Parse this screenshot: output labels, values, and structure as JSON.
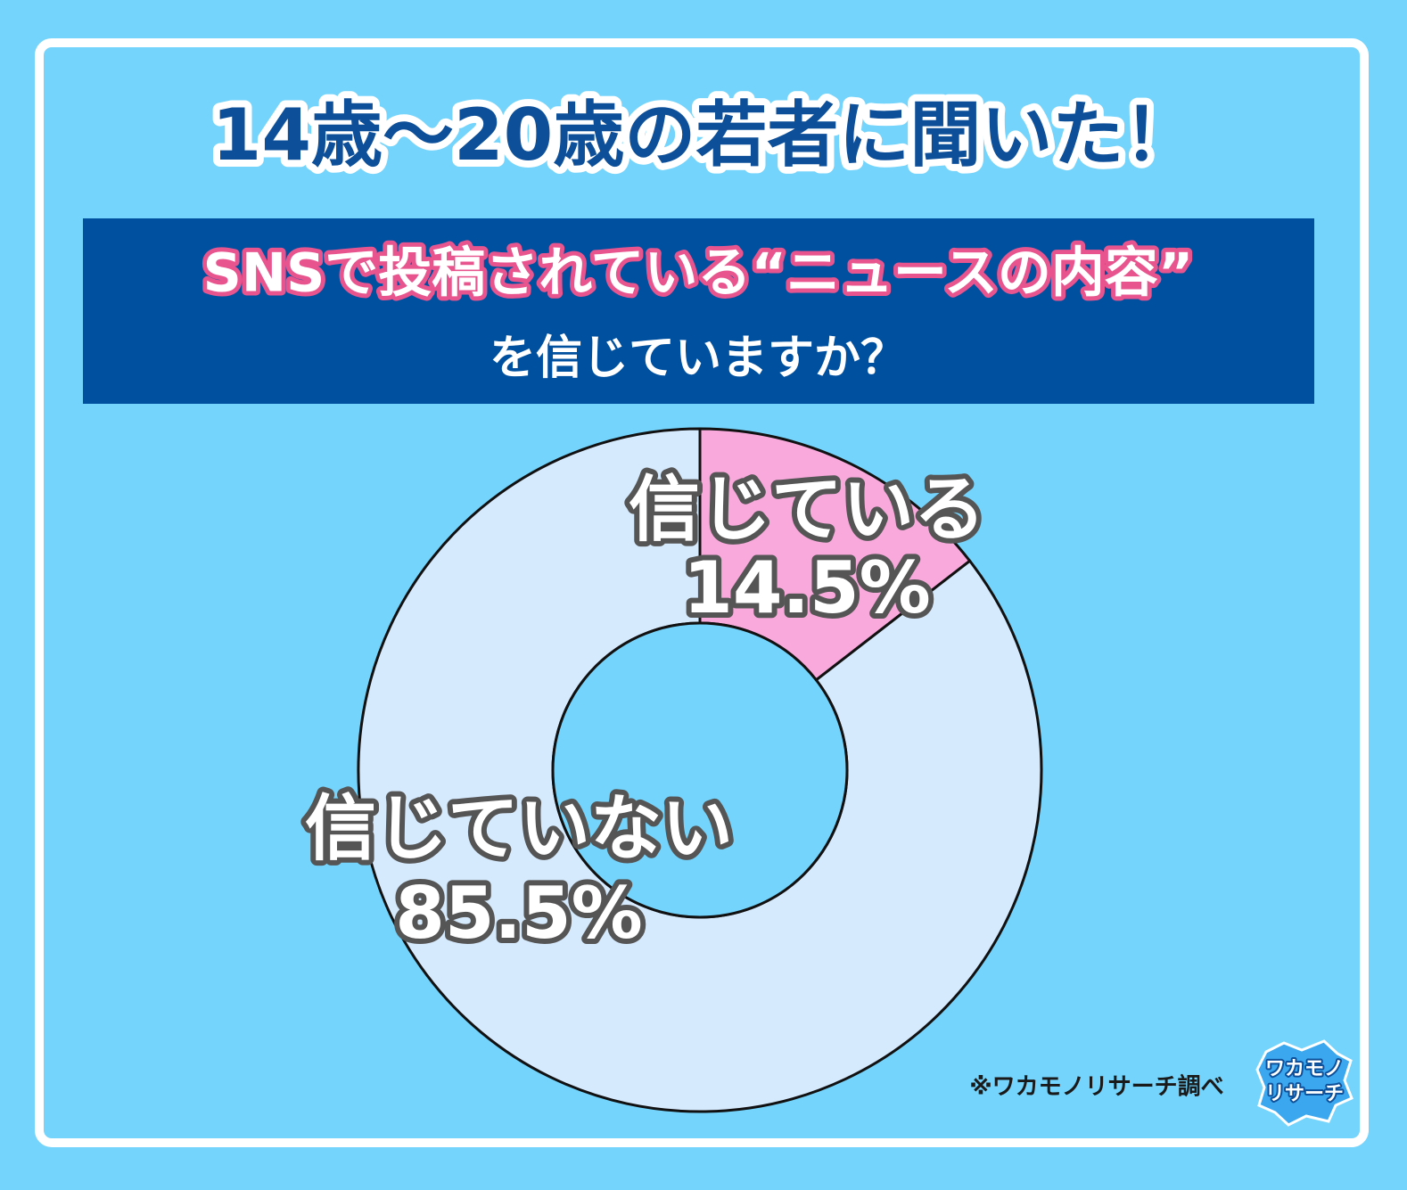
{
  "chart_data": {
    "type": "pie",
    "title": "14歳～20歳の若者に聞いた！",
    "subtitle": [
      "SNSで投稿されている“ニュースの内容”",
      "を信じていますか？"
    ],
    "categories": [
      "信じている",
      "信じていない"
    ],
    "values": [
      14.5,
      85.5
    ],
    "value_labels": [
      "14.5%",
      "85.5%"
    ],
    "colors": [
      "#f9a9dc",
      "#d6eafd"
    ],
    "donut": true,
    "source": "※ワカモノリサーチ調べ",
    "logo": [
      "ワカモノ",
      "リサーチ"
    ]
  }
}
